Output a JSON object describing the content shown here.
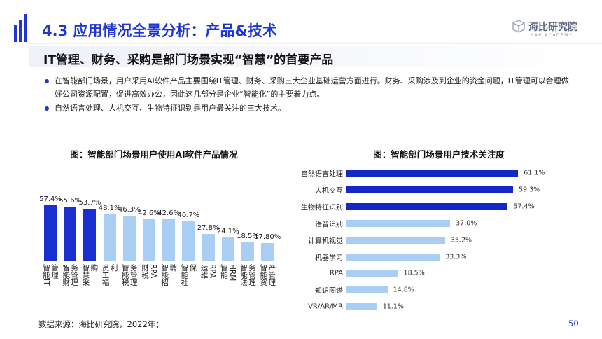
{
  "header": {
    "title": "4.3 应用情况全景分析：产品&技术",
    "logo_name": "海比研究院",
    "logo_sub": "HAP ACADEMY"
  },
  "subtitle": "IT管理、财务、采购是部门场景实现“智慧”的首要产品",
  "bullets": [
    "在智能部门场景，用户采用AI软件产品主要围绕IT管理、财务、采购三大企业基础运营方面进行。财务、采购涉及到企业的资金问题，IT管理可以合理做好公司资源配置，促进高效办公，因此这几部分是企业“智能化”的主要着力点。",
    "自然语言处理、人机交互、生物特征识别是用户最关注的三大技术。"
  ],
  "source": "数据来源：海比研究院，2022年；",
  "page_number": "50",
  "chart_data": [
    {
      "type": "bar",
      "orientation": "vertical",
      "title": "图：智能部门场景用户使用AI软件产品情况",
      "categories": [
        "智能IT管理",
        "智能财务管理",
        "智慧采购",
        "员工福利",
        "智能税务管理",
        "财税RPA",
        "智能招聘",
        "智能社保",
        "运维RPA",
        "智能HRM",
        "智能法务管理",
        "智能资产管理"
      ],
      "values": [
        57.4,
        55.6,
        53.7,
        48.1,
        46.3,
        42.6,
        42.6,
        40.7,
        27.8,
        24.1,
        18.5,
        17.8
      ],
      "value_labels": [
        "57.4%",
        "55.6%",
        "53.7%",
        "48.1%",
        "46.3%",
        "42.6%",
        "42.6%",
        "40.7%",
        "27.8%",
        "24.1%",
        "18.5%",
        "17.80%"
      ],
      "colors": [
        "#1a2fd0",
        "#1a2fd0",
        "#1a2fd0",
        "#a9cdf3",
        "#a9cdf3",
        "#a9cdf3",
        "#a9cdf3",
        "#a9cdf3",
        "#a9cdf3",
        "#a9cdf3",
        "#a9cdf3",
        "#a9cdf3"
      ]
    },
    {
      "type": "bar",
      "orientation": "horizontal",
      "title": "图：智能部门场景用户技术关注度",
      "categories": [
        "自然语言处理",
        "人机交互",
        "生物特征识别",
        "语音识别",
        "计算机视觉",
        "机器学习",
        "RPA",
        "知识图谱",
        "VR/AR/MR"
      ],
      "values": [
        61.1,
        59.3,
        57.4,
        37.0,
        35.2,
        33.3,
        18.5,
        14.8,
        11.1
      ],
      "value_labels": [
        "61.1%",
        "59.3%",
        "57.4%",
        "37.0%",
        "35.2%",
        "33.3%",
        "18.5%",
        "14.8%",
        "11.1%"
      ],
      "colors": [
        "#1428c8",
        "#1428c8",
        "#1428c8",
        "#a9cdf3",
        "#a9cdf3",
        "#a9cdf3",
        "#a9cdf3",
        "#a9cdf3",
        "#a9cdf3"
      ]
    }
  ]
}
